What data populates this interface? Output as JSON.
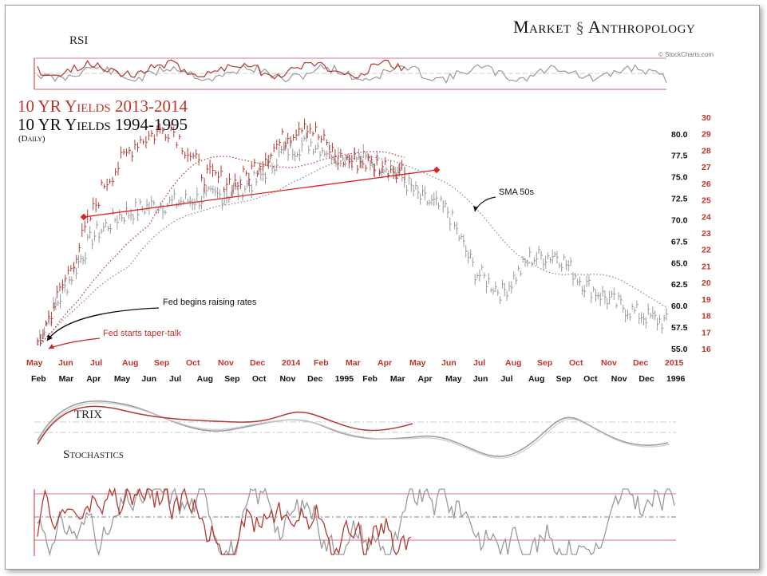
{
  "header": {
    "brand_left": "Market",
    "brand_right": "Anthropology",
    "credit": "© StockCharts.com"
  },
  "titles": {
    "title_2014": "10 YR Yields 2013-2014",
    "title_1995": "10 YR Yields 1994-1995",
    "subtitle": "(Daily)"
  },
  "panels": {
    "rsi": "RSI",
    "trix": "TRIX",
    "stoch": "Stochastics"
  },
  "annotations": {
    "sma": "SMA 50s",
    "fed_raise": "Fed begins raising rates",
    "fed_taper": "Fed starts taper-talk"
  },
  "colors": {
    "accent": "#c0332b",
    "series_1995": "#9a9a9a",
    "series_2014": "#b23a35"
  },
  "chart_data": {
    "type": "line",
    "series": [
      {
        "name": "10 YR Yields 2013-2014",
        "axis": "right_red",
        "x_axis": "top",
        "x": [
          "May",
          "Jun",
          "Jul",
          "Aug",
          "Sep",
          "Oct",
          "Nov",
          "Dec",
          "2014",
          "Feb",
          "Mar",
          "Apr"
        ],
        "values": [
          16.3,
          21.0,
          26.0,
          28.6,
          29.4,
          26.5,
          26.0,
          28.0,
          29.8,
          27.5,
          27.2,
          26.8
        ]
      },
      {
        "name": "10 YR Yields 1994-1995",
        "axis": "right_black",
        "x_axis": "bottom",
        "x": [
          "Feb",
          "Mar",
          "Apr",
          "May",
          "Jun",
          "Jul",
          "Aug",
          "Sep",
          "Oct",
          "Nov",
          "Dec",
          "1995",
          "Feb",
          "Mar",
          "Apr",
          "May",
          "Jun",
          "Jul",
          "Aug",
          "Sep",
          "Oct",
          "Nov",
          "Dec",
          "1996"
        ],
        "values": [
          56.0,
          62.0,
          68.0,
          70.5,
          71.5,
          72.0,
          72.5,
          73.0,
          74.5,
          78.0,
          79.0,
          77.5,
          77.0,
          76.0,
          72.5,
          71.0,
          64.0,
          61.5,
          65.5,
          66.0,
          62.5,
          60.5,
          59.0,
          58.0
        ]
      }
    ],
    "x_top_labels": [
      "May",
      "Jun",
      "Jul",
      "Aug",
      "Sep",
      "Oct",
      "Nov",
      "Dec",
      "2014",
      "Feb",
      "Mar",
      "Apr",
      "May",
      "Jun",
      "Jul",
      "Aug",
      "Sep",
      "Oct",
      "Nov",
      "Dec",
      "2015"
    ],
    "x_bottom_labels": [
      "Feb",
      "Mar",
      "Apr",
      "May",
      "Jun",
      "Jul",
      "Aug",
      "Sep",
      "Oct",
      "Nov",
      "Dec",
      "1995",
      "Feb",
      "Mar",
      "Apr",
      "May",
      "Jun",
      "Jul",
      "Aug",
      "Sep",
      "Oct",
      "Nov",
      "Dec",
      "1996"
    ],
    "y_right_black": [
      "80.0",
      "77.5",
      "75.0",
      "72.5",
      "70.0",
      "67.5",
      "65.0",
      "62.5",
      "60.0",
      "57.5",
      "55.0"
    ],
    "y_right_red": [
      "30",
      "29",
      "28",
      "27",
      "26",
      "25",
      "24",
      "23",
      "22",
      "21",
      "20",
      "19",
      "18",
      "17",
      "16"
    ],
    "ylim_black": [
      55,
      81
    ],
    "ylim_red": [
      16,
      30
    ]
  }
}
